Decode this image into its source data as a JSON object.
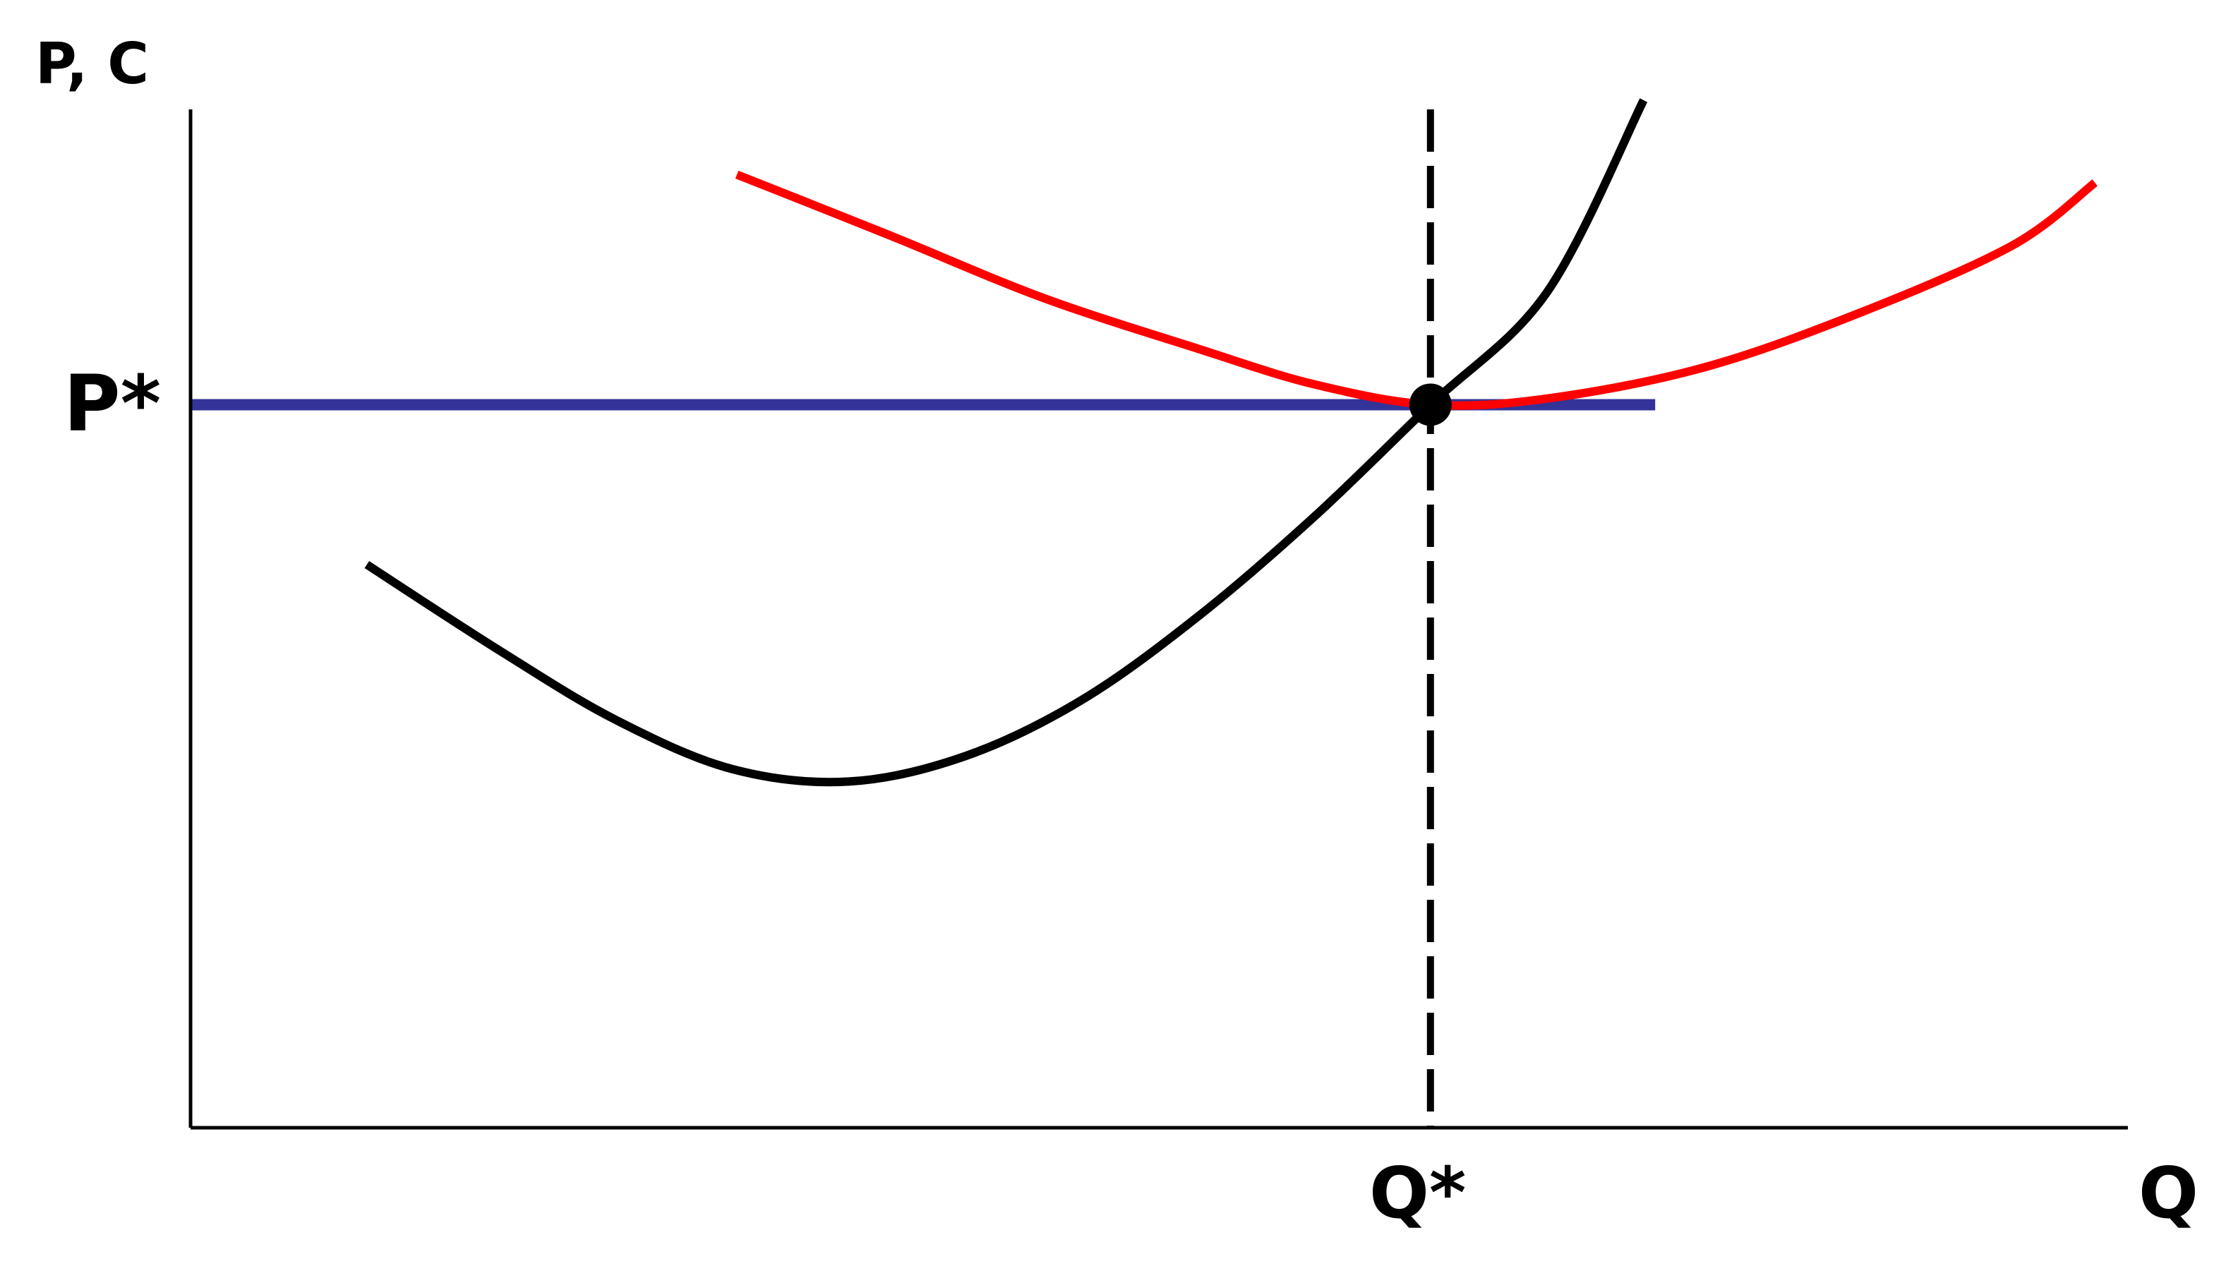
{
  "chart_data": {
    "type": "line",
    "title": "",
    "ylabel": "P, C",
    "xlabel": "Q",
    "xlim": [
      0,
      100
    ],
    "ylim": [
      0,
      100
    ],
    "grid": false,
    "equilibrium": {
      "x": 64,
      "y": 71,
      "x_label": "Q*",
      "y_label": "P*"
    },
    "series": [
      {
        "color": "#ff0000",
        "points": [
          [
            28.2,
            93.6
          ],
          [
            36,
            87.7
          ],
          [
            44,
            81.5
          ],
          [
            52,
            76.5
          ],
          [
            58,
            73.0
          ],
          [
            64,
            71.0
          ],
          [
            70,
            71.6
          ],
          [
            78,
            74.6
          ],
          [
            86,
            79.9
          ],
          [
            94,
            86.6
          ],
          [
            98.3,
            92.8
          ]
        ]
      },
      {
        "color": "#000000",
        "points": [
          [
            9.1,
            55.3
          ],
          [
            16,
            46.8
          ],
          [
            22,
            40.0
          ],
          [
            28,
            35.2
          ],
          [
            34,
            34.0
          ],
          [
            40,
            36.5
          ],
          [
            46,
            42.0
          ],
          [
            52,
            50.2
          ],
          [
            58,
            60.0
          ],
          [
            64,
            71.0
          ],
          [
            70,
            82.0
          ],
          [
            75,
            100.9
          ]
        ]
      },
      {
        "color": "#333399",
        "points": [
          [
            0,
            71
          ],
          [
            75.6,
            71
          ]
        ]
      }
    ]
  }
}
